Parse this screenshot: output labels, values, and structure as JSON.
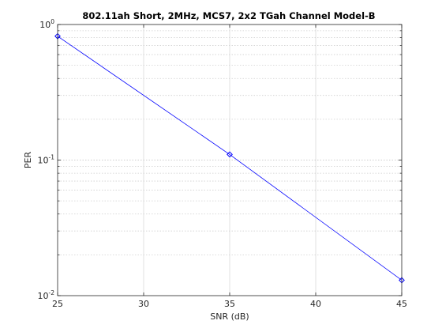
{
  "chart_data": {
    "type": "line",
    "title": "802.11ah Short, 2MHz, MCS7, 2x2 TGah Channel Model-B",
    "xlabel": "SNR (dB)",
    "ylabel": "PER",
    "xlim": [
      25,
      45
    ],
    "ylim": [
      0.01,
      1
    ],
    "y_scale": "log",
    "grid": true,
    "x_ticks": [
      25,
      30,
      35,
      40,
      45
    ],
    "y_ticks": [
      {
        "value": 0.01,
        "base": "10",
        "exp": "-2"
      },
      {
        "value": 0.1,
        "base": "10",
        "exp": "-1"
      },
      {
        "value": 1,
        "base": "10",
        "exp": "0"
      }
    ],
    "series": [
      {
        "x": [
          25,
          35,
          45
        ],
        "y": [
          0.82,
          0.11,
          0.013
        ],
        "color": "#0000ff",
        "marker": "diamond"
      }
    ]
  }
}
